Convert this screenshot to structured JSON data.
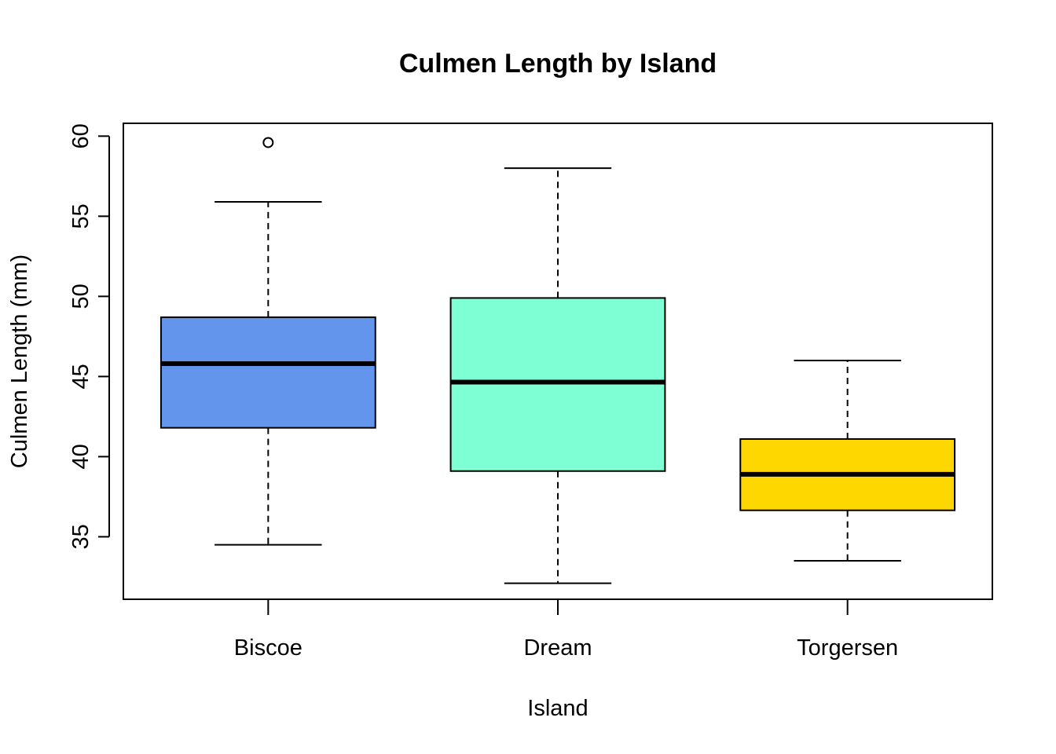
{
  "chart_data": {
    "type": "box",
    "title": "Culmen Length by Island",
    "xlabel": "Island",
    "ylabel": "Culmen Length (mm)",
    "categories": [
      "Biscoe",
      "Dream",
      "Torgersen"
    ],
    "ylim": [
      31.1,
      60.8
    ],
    "yticks": [
      "35",
      "40",
      "45",
      "50",
      "55",
      "60"
    ],
    "grid": false,
    "legend": "none",
    "boxes": [
      {
        "category": "Biscoe",
        "min": 34.5,
        "q1": 41.8,
        "median": 45.8,
        "q3": 48.7,
        "max": 55.9,
        "outliers": [
          59.6
        ],
        "color": "#6495ED"
      },
      {
        "category": "Dream",
        "min": 32.1,
        "q1": 39.1,
        "median": 44.65,
        "q3": 49.9,
        "max": 58.0,
        "outliers": [],
        "color": "#7FFFD4"
      },
      {
        "category": "Torgersen",
        "min": 33.5,
        "q1": 36.65,
        "median": 38.9,
        "q3": 41.1,
        "max": 46.0,
        "outliers": [],
        "color": "#FFD700"
      }
    ]
  }
}
